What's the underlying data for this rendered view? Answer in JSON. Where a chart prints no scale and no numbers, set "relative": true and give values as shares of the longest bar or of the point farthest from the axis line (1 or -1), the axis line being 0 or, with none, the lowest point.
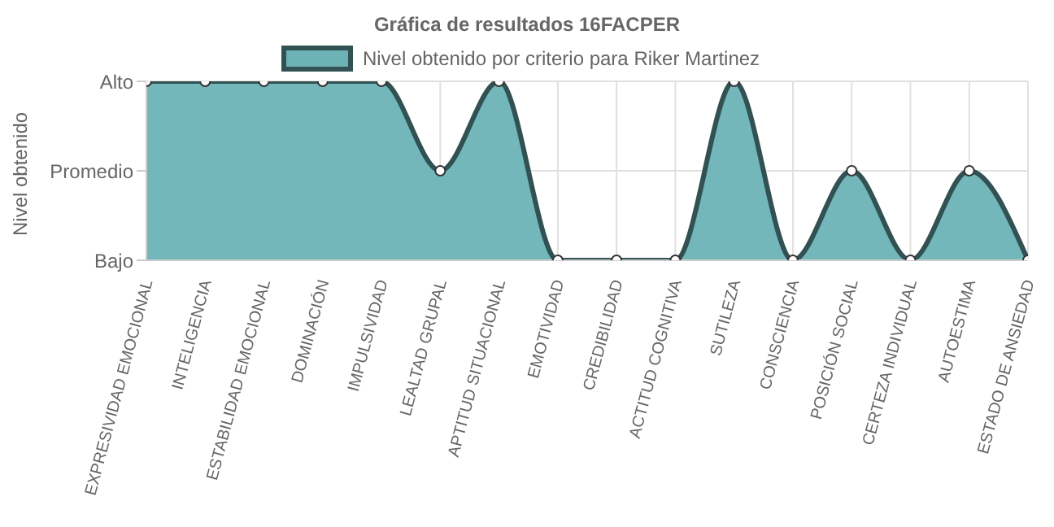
{
  "chart_data": {
    "type": "area",
    "title": "Gráfica de resultados 16FACPER",
    "ylabel": "Nivel obtenido",
    "categories": [
      "EXPRESIVIDAD EMOCIONAL",
      "INTELIGENCIA",
      "ESTABILIDAD EMOCIONAL",
      "DOMINACIÓN",
      "IMPULSIVIDAD",
      "LEALTAD GRUPAL",
      "APTITUD SITUACIONAL",
      "EMOTIVIDAD",
      "CREDIBILIDAD",
      "ACTITUD COGNITIVA",
      "SUTILEZA",
      "CONSCIENCIA",
      "POSICIÓN SOCIAL",
      "CERTEZA INDIVIDUAL",
      "AUTOESTIMA",
      "ESTADO DE ANSIEDAD"
    ],
    "y_categories": [
      "Alto",
      "Promedio",
      "Bajo"
    ],
    "relative": true,
    "series": [
      {
        "name": "Nivel obtenido por criterio para Riker Martinez",
        "color": "#6db3b6",
        "values": [
          1,
          1,
          1,
          1,
          1,
          0.5,
          1,
          0,
          0,
          0,
          1,
          0,
          0.5,
          0,
          0.5,
          0
        ]
      }
    ],
    "grid": true,
    "legend": "top",
    "marker": "circle"
  }
}
